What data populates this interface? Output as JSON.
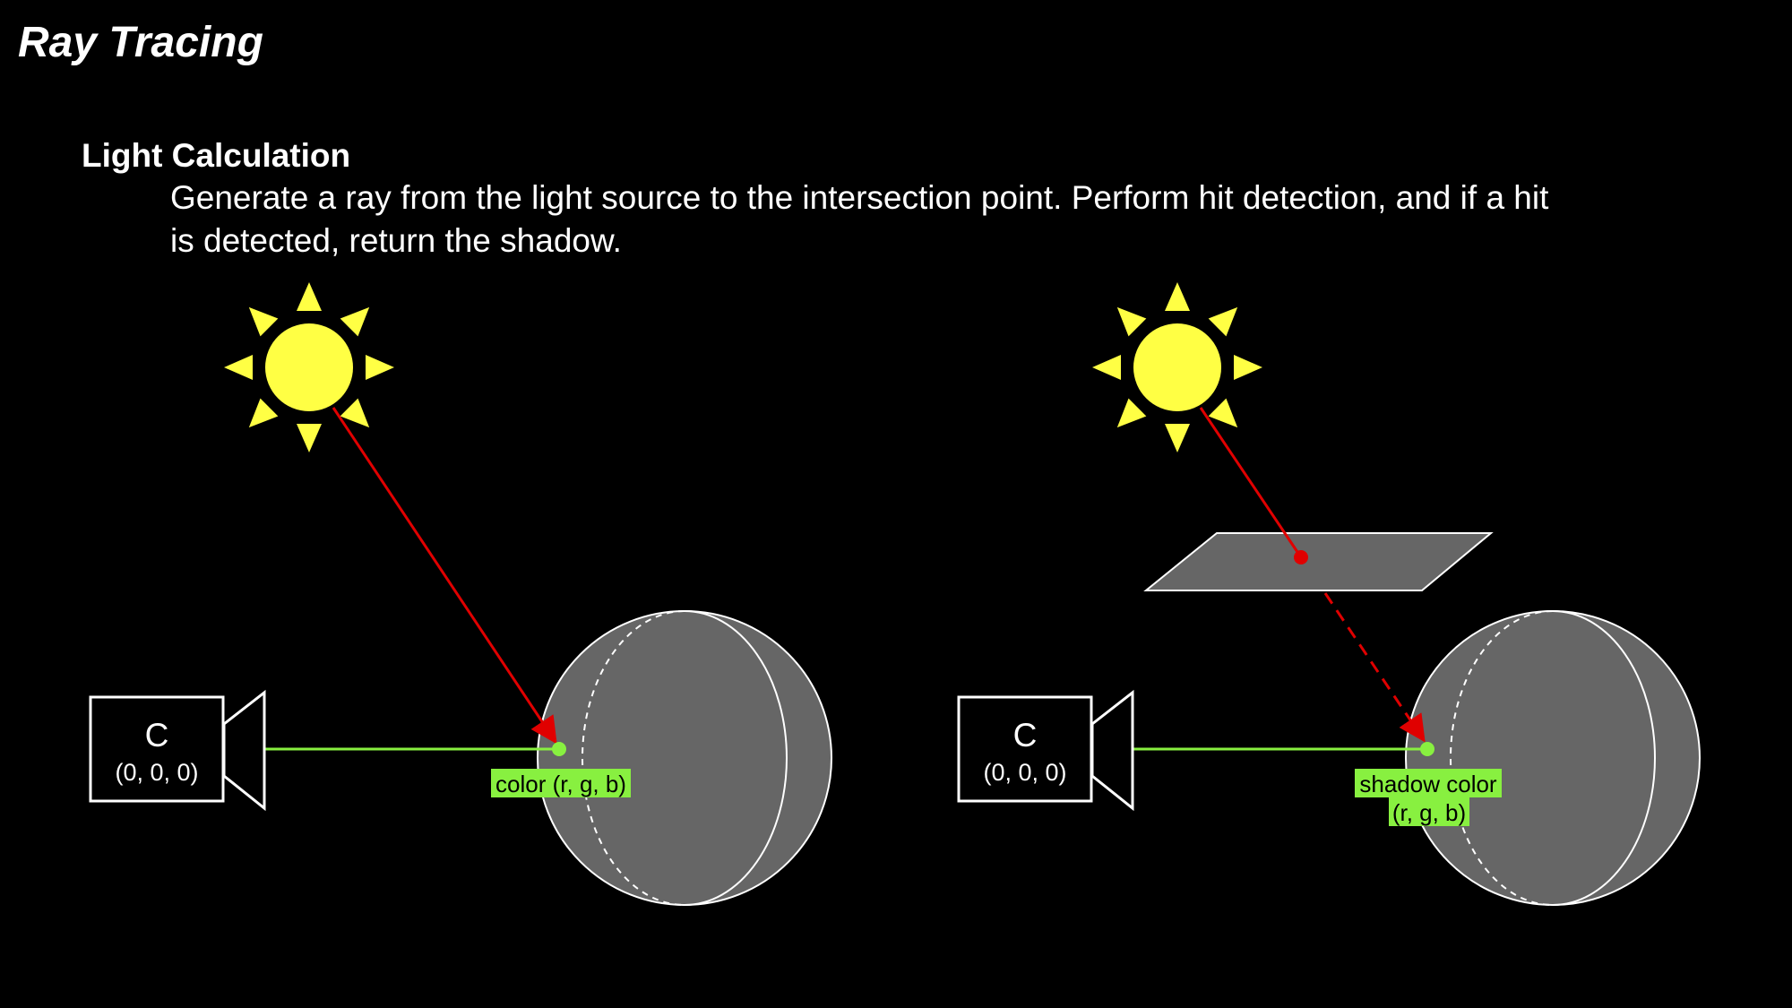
{
  "title": "Ray Tracing",
  "section": {
    "heading": "Light Calculation",
    "body": "Generate a ray from the light source to the intersection point. Perform hit detection, and if a hit is detected, return the shadow."
  },
  "left_scene": {
    "camera": {
      "letter": "C",
      "coords": "(0, 0, 0)"
    },
    "hit_label": "color (r, g, b)"
  },
  "right_scene": {
    "camera": {
      "letter": "C",
      "coords": "(0, 0, 0)"
    },
    "hit_label_line1": "shadow color",
    "hit_label_line2": "(r, g, b)"
  },
  "colors": {
    "background": "#000000",
    "sun": "#ffff44",
    "light_ray": "#e00000",
    "camera_ray": "#88f040",
    "label_bg": "#88f040",
    "sphere": "#666666",
    "occluder": "#666666"
  },
  "icons": [
    "sun-icon",
    "camera-icon"
  ]
}
